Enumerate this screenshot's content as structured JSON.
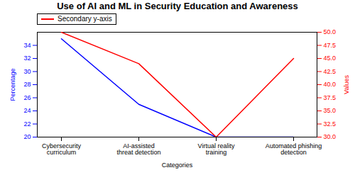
{
  "chart_data": {
    "type": "line",
    "title": "Use of AI and ML in Security Education and Awareness",
    "xlabel": "Categories",
    "ylabel": "Percentage",
    "y2label": "Values",
    "categories": [
      "Cybersecurity curriculum",
      "AI-assisted threat detection",
      "Virtual reality training",
      "Automated phishing detection"
    ],
    "series": [
      {
        "color": "blue",
        "values": [
          35,
          25,
          20,
          20
        ]
      },
      {
        "name": "Secondary y-axis",
        "color": "red",
        "values": [
          50,
          44,
          30,
          45
        ],
        "axis": "y2"
      }
    ],
    "ylim": [
      20,
      36
    ],
    "yticks": [
      20,
      22,
      24,
      26,
      28,
      30,
      32,
      34
    ],
    "y2lim": [
      30,
      50
    ],
    "y2ticks": [
      {
        "value": 30,
        "label": "30.0"
      },
      32.5,
      {
        "value": 35,
        "label": "35.0"
      },
      37.5,
      {
        "value": 40,
        "label": "40.0"
      },
      42.5,
      {
        "value": 45,
        "label": "45.0"
      },
      47.5,
      {
        "value": 50,
        "label": "50.0"
      }
    ],
    "legend": "upper left"
  }
}
